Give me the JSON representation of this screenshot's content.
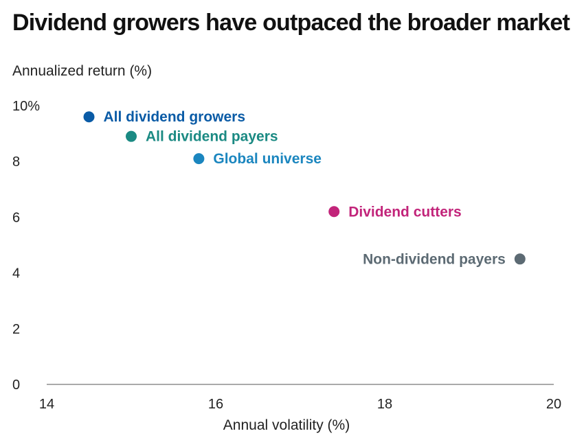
{
  "chart_data": {
    "type": "scatter",
    "title": "Dividend growers have outpaced the broader market",
    "ylabel": "Annualized return (%)",
    "xlabel": "Annual volatility (%)",
    "xlim": [
      14,
      20
    ],
    "ylim": [
      0,
      10
    ],
    "x_ticks": [
      "14",
      "16",
      "18",
      "20"
    ],
    "y_ticks": [
      "0",
      "2",
      "4",
      "6",
      "8",
      "10%"
    ],
    "grid": false,
    "points": [
      {
        "label": "All dividend growers",
        "x": 14.5,
        "y": 9.6,
        "color": "#0a5ba6",
        "label_side": "right"
      },
      {
        "label": "All dividend payers",
        "x": 15.0,
        "y": 8.9,
        "color": "#1b8a83",
        "label_side": "right"
      },
      {
        "label": "Global universe",
        "x": 15.8,
        "y": 8.1,
        "color": "#1b86bf",
        "label_side": "right"
      },
      {
        "label": "Dividend cutters",
        "x": 17.4,
        "y": 6.2,
        "color": "#c2247a",
        "label_side": "right"
      },
      {
        "label": "Non-dividend payers",
        "x": 19.6,
        "y": 4.5,
        "color": "#5c6a73",
        "label_side": "left"
      }
    ]
  }
}
